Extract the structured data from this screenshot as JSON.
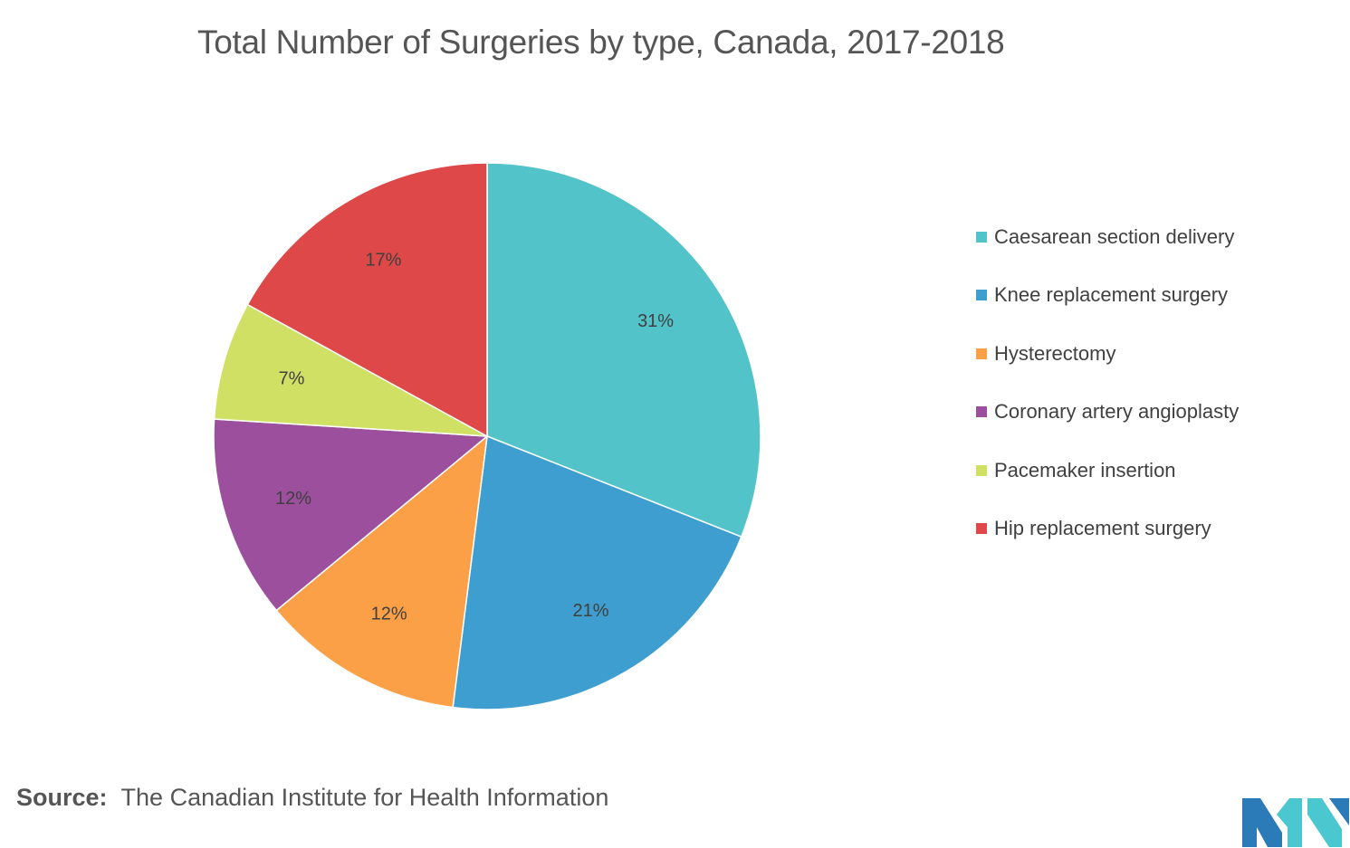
{
  "chart_data": {
    "type": "pie",
    "title": "Total Number of Surgeries by type, Canada, 2017-2018",
    "slices": [
      {
        "label": "Caesarean section delivery",
        "value": 31,
        "display": "31%",
        "color": "#52C4C9"
      },
      {
        "label": "Knee replacement surgery",
        "value": 21,
        "display": "21%",
        "color": "#3D9ECF"
      },
      {
        "label": "Hysterectomy",
        "value": 12,
        "display": "12%",
        "color": "#FBA047"
      },
      {
        "label": "Coronary artery angioplasty",
        "value": 12,
        "display": "12%",
        "color": "#9B4F9C"
      },
      {
        "label": "Pacemaker insertion",
        "value": 7,
        "display": "7%",
        "color": "#CFE065"
      },
      {
        "label": "Hip replacement surgery",
        "value": 17,
        "display": "17%",
        "color": "#DE4848"
      }
    ],
    "legend_position": "right"
  },
  "source": {
    "label": "Source:",
    "text": "The Canadian Institute for Health Information"
  },
  "logo": {
    "icon": "mordor-logo-icon",
    "colors": [
      "#2B7BB8",
      "#4BC8CF"
    ]
  }
}
